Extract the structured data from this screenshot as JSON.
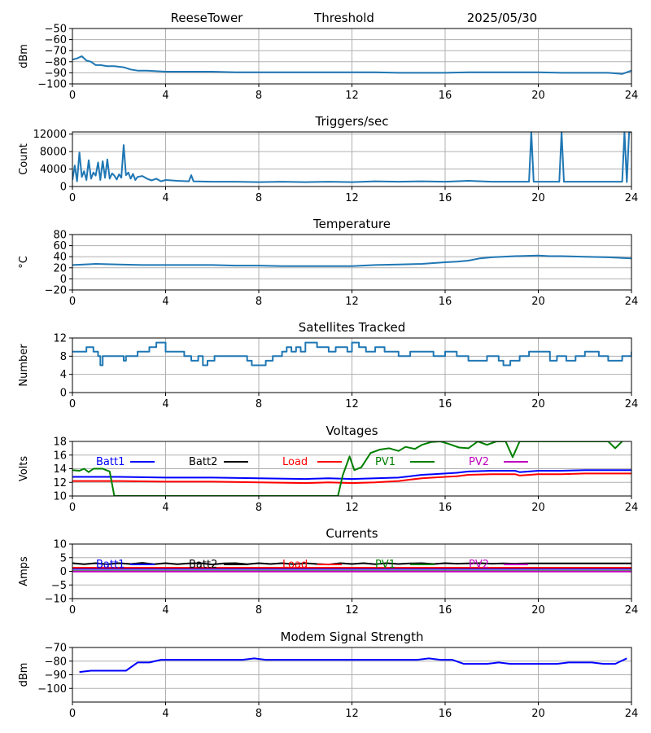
{
  "header": {
    "station": "ReeseTower",
    "mode": "Threshold",
    "date": "2025/05/30"
  },
  "chart_data": [
    {
      "type": "line",
      "title": "",
      "ylabel": "dBm",
      "xlim": [
        0,
        24
      ],
      "ylim": [
        -100,
        -50
      ],
      "xticks": [
        0,
        4,
        8,
        12,
        16,
        20,
        24
      ],
      "yticks": [
        -100,
        -90,
        -80,
        -70,
        -60,
        -50
      ],
      "grid": true,
      "series": [
        {
          "color": "#1f77b4",
          "x": [
            0,
            0.2,
            0.4,
            0.6,
            0.8,
            1.0,
            1.2,
            1.5,
            1.8,
            2.2,
            2.5,
            2.8,
            3.2,
            3.6,
            4,
            5,
            6,
            7,
            8,
            9,
            10,
            11,
            12,
            13,
            14,
            15,
            16,
            17,
            18,
            19,
            20,
            21,
            22,
            23,
            23.6,
            24
          ],
          "y": [
            -78,
            -77,
            -75,
            -79,
            -80,
            -83,
            -83,
            -84,
            -84,
            -85,
            -87,
            -88,
            -88,
            -88.5,
            -89,
            -89,
            -89,
            -89.5,
            -89.5,
            -89.5,
            -89.5,
            -89.5,
            -89.5,
            -89.5,
            -90,
            -90,
            -90,
            -89.5,
            -89.5,
            -89.5,
            -89.5,
            -90,
            -90,
            -90,
            -91,
            -88
          ]
        }
      ]
    },
    {
      "type": "line",
      "title": "Triggers/sec",
      "ylabel": "Count",
      "xlim": [
        0,
        24
      ],
      "ylim": [
        0,
        12500
      ],
      "xticks": [
        0,
        4,
        8,
        12,
        16,
        20,
        24
      ],
      "yticks": [
        0,
        4000,
        8000,
        12000
      ],
      "grid": true,
      "series": [
        {
          "color": "#1f77b4",
          "x": [
            0,
            0.1,
            0.2,
            0.3,
            0.4,
            0.5,
            0.6,
            0.7,
            0.8,
            0.9,
            1.0,
            1.1,
            1.2,
            1.3,
            1.4,
            1.5,
            1.6,
            1.7,
            1.8,
            1.9,
            2.0,
            2.1,
            2.2,
            2.3,
            2.4,
            2.5,
            2.6,
            2.7,
            2.8,
            3.0,
            3.2,
            3.4,
            3.6,
            3.8,
            4.0,
            4.5,
            5.0,
            5.1,
            5.2,
            6,
            7,
            8,
            9,
            10,
            11,
            12,
            13,
            14,
            15,
            16,
            17,
            18,
            19,
            19.6,
            19.7,
            19.8,
            20,
            20.9,
            21.0,
            21.1,
            22,
            23,
            23.6,
            23.7,
            23.8,
            23.9,
            24
          ],
          "y": [
            1500,
            4800,
            1200,
            7800,
            2200,
            3500,
            1500,
            6000,
            1800,
            3200,
            2500,
            5500,
            1500,
            5800,
            2000,
            6200,
            1800,
            3000,
            2500,
            1600,
            2800,
            2000,
            9500,
            2600,
            3200,
            1800,
            2900,
            1500,
            2200,
            2400,
            1800,
            1400,
            1800,
            1200,
            1500,
            1300,
            1200,
            2600,
            1200,
            1100,
            1100,
            1000,
            1100,
            1000,
            1100,
            1000,
            1200,
            1100,
            1200,
            1100,
            1300,
            1100,
            1100,
            1100,
            12500,
            1100,
            1100,
            1100,
            12500,
            1100,
            1100,
            1100,
            1100,
            12500,
            1000,
            12500,
            12500
          ]
        }
      ]
    },
    {
      "type": "line",
      "title": "Temperature",
      "ylabel": "°C",
      "xlim": [
        0,
        24
      ],
      "ylim": [
        -20,
        80
      ],
      "xticks": [
        0,
        4,
        8,
        12,
        16,
        20,
        24
      ],
      "yticks": [
        -20,
        0,
        20,
        40,
        60,
        80
      ],
      "grid": true,
      "series": [
        {
          "color": "#1f77b4",
          "x": [
            0,
            0.5,
            1,
            2,
            3,
            4,
            5,
            6,
            7,
            8,
            9,
            10,
            11,
            12,
            13,
            14,
            15,
            16,
            16.5,
            17,
            17.5,
            18,
            19,
            20,
            20.5,
            21,
            22,
            23,
            24
          ],
          "y": [
            25,
            26,
            27,
            26,
            25,
            25,
            25,
            25,
            24,
            24,
            23,
            23,
            23,
            23,
            25,
            26,
            27,
            30,
            31,
            33,
            37,
            39,
            41,
            42,
            41,
            41,
            40,
            39,
            37
          ]
        }
      ]
    },
    {
      "type": "line",
      "title": "Satellites Tracked",
      "ylabel": "Number",
      "xlim": [
        0,
        24
      ],
      "ylim": [
        0,
        12
      ],
      "xticks": [
        0,
        4,
        8,
        12,
        16,
        20,
        24
      ],
      "yticks": [
        0,
        4,
        8,
        12
      ],
      "grid": true,
      "series": [
        {
          "color": "#1f77b4",
          "step": true,
          "x": [
            0,
            0.6,
            0.9,
            1.1,
            1.2,
            1.3,
            2.0,
            2.2,
            2.3,
            2.8,
            3.3,
            3.6,
            4.0,
            4.5,
            4.8,
            5.1,
            5.4,
            5.6,
            5.8,
            6.1,
            7.0,
            7.5,
            7.7,
            8.3,
            8.6,
            9.0,
            9.2,
            9.4,
            9.6,
            9.8,
            10.0,
            10.5,
            11.0,
            11.3,
            11.8,
            12.0,
            12.3,
            12.6,
            13.0,
            13.4,
            14.0,
            14.5,
            15.0,
            15.5,
            16.0,
            16.5,
            17.0,
            17.5,
            17.8,
            18.3,
            18.5,
            18.8,
            19.2,
            19.6,
            20.2,
            20.5,
            20.8,
            21.2,
            21.6,
            22.0,
            22.6,
            23.0,
            23.6,
            24
          ],
          "y": [
            9,
            10,
            9,
            8,
            6,
            8,
            8,
            7,
            8,
            9,
            10,
            11,
            9,
            9,
            8,
            7,
            8,
            6,
            7,
            8,
            8,
            7,
            6,
            7,
            8,
            9,
            10,
            9,
            10,
            9,
            11,
            10,
            9,
            10,
            9,
            11,
            10,
            9,
            10,
            9,
            8,
            9,
            9,
            8,
            9,
            8,
            7,
            7,
            8,
            7,
            6,
            7,
            8,
            9,
            9,
            7,
            8,
            7,
            8,
            9,
            8,
            7,
            8,
            9
          ]
        }
      ]
    },
    {
      "type": "line",
      "title": "Voltages",
      "ylabel": "Volts",
      "xlim": [
        0,
        24
      ],
      "ylim": [
        10,
        18
      ],
      "xticks": [
        0,
        4,
        8,
        12,
        16,
        20,
        24
      ],
      "yticks": [
        10,
        12,
        14,
        16,
        18
      ],
      "grid": true,
      "legend": "inside-top",
      "series": [
        {
          "name": "Batt1",
          "color": "#0000ff",
          "x": [
            0,
            2,
            4,
            6,
            8,
            10,
            11,
            12,
            13,
            14,
            14.5,
            15,
            15.5,
            16,
            16.5,
            17,
            18,
            19,
            19.2,
            20,
            21,
            22,
            23,
            24
          ],
          "y": [
            12.8,
            12.8,
            12.7,
            12.7,
            12.6,
            12.5,
            12.6,
            12.5,
            12.6,
            12.7,
            12.9,
            13.1,
            13.2,
            13.3,
            13.4,
            13.6,
            13.7,
            13.7,
            13.5,
            13.7,
            13.7,
            13.8,
            13.8,
            13.8
          ]
        },
        {
          "name": "Batt2",
          "color": "#000000",
          "x": [],
          "y": []
        },
        {
          "name": "Load",
          "color": "#ff0000",
          "x": [
            0,
            2,
            4,
            6,
            8,
            10,
            11,
            12,
            13,
            14,
            14.5,
            15,
            15.5,
            16,
            16.5,
            17,
            18,
            19,
            19.2,
            20,
            21,
            22,
            23,
            24
          ],
          "y": [
            12.2,
            12.2,
            12.1,
            12.1,
            12.0,
            11.9,
            12.0,
            11.9,
            12.0,
            12.2,
            12.4,
            12.6,
            12.7,
            12.8,
            12.9,
            13.1,
            13.2,
            13.2,
            13.0,
            13.2,
            13.2,
            13.3,
            13.3,
            13.3
          ]
        },
        {
          "name": "PV1",
          "color": "#008000",
          "x": [
            0,
            0.3,
            0.5,
            0.7,
            0.9,
            1.1,
            1.3,
            1.6,
            1.8,
            2.0,
            11.4,
            11.6,
            11.9,
            12.1,
            12.4,
            12.8,
            13.2,
            13.6,
            14.0,
            14.3,
            14.7,
            15.0,
            15.4,
            15.8,
            16.2,
            16.6,
            17.0,
            17.4,
            17.8,
            18.2,
            18.6,
            18.9,
            19.2,
            19.5,
            23.0,
            23.3,
            23.6
          ],
          "y": [
            13.8,
            13.7,
            14.0,
            13.5,
            14.0,
            14.0,
            14.0,
            13.6,
            10,
            10,
            10,
            13.0,
            15.8,
            13.8,
            14.2,
            16.3,
            16.8,
            17.0,
            16.6,
            17.2,
            16.9,
            17.5,
            17.9,
            18.0,
            17.6,
            17.1,
            17.0,
            18.0,
            17.5,
            18.0,
            18.0,
            15.7,
            18.0,
            18.0,
            18.0,
            17.0,
            18.0
          ]
        },
        {
          "name": "PV2",
          "color": "#bf00bf",
          "x": [],
          "y": []
        }
      ]
    },
    {
      "type": "line",
      "title": "Currents",
      "ylabel": "Amps",
      "xlim": [
        0,
        24
      ],
      "ylim": [
        -10,
        10
      ],
      "xticks": [
        0,
        4,
        8,
        12,
        16,
        20,
        24
      ],
      "yticks": [
        -10,
        -5,
        0,
        5,
        10
      ],
      "grid": true,
      "legend": "inside-top",
      "series": [
        {
          "name": "Batt1",
          "color": "#0000ff",
          "x": [
            0,
            24
          ],
          "y": [
            0.9,
            0.9
          ]
        },
        {
          "name": "Batt2",
          "color": "#000000",
          "x": [
            0,
            0.5,
            1,
            1.5,
            2,
            2.5,
            3,
            3.5,
            4,
            4.5,
            5,
            5.5,
            6,
            6.5,
            7,
            7.5,
            8,
            8.5,
            9,
            9.5,
            10,
            10.5,
            11,
            11.5,
            12,
            12.5,
            13,
            13.5,
            14,
            14.5,
            15,
            15.5,
            16,
            16.5,
            17,
            17.5,
            18,
            18.5,
            19,
            19.5,
            20,
            21,
            22,
            23,
            24
          ],
          "y": [
            3.0,
            2.6,
            3.0,
            2.6,
            3.0,
            2.7,
            3.1,
            2.6,
            3.0,
            2.6,
            2.9,
            3.0,
            2.5,
            2.9,
            3.0,
            2.6,
            3.0,
            2.7,
            3.0,
            2.6,
            3.0,
            2.7,
            2.5,
            3.0,
            2.7,
            3.0,
            2.6,
            3.0,
            2.7,
            2.9,
            3.0,
            2.7,
            3.0,
            2.8,
            2.9,
            3.0,
            2.8,
            2.9,
            2.8,
            2.9,
            2.9,
            2.9,
            2.9,
            2.9,
            2.9
          ]
        },
        {
          "name": "Load",
          "color": "#ff0000",
          "x": [
            0,
            24
          ],
          "y": [
            1.3,
            1.3
          ]
        },
        {
          "name": "PV1",
          "color": "#008000",
          "x": [
            0,
            24
          ],
          "y": [
            0.1,
            0.1
          ]
        },
        {
          "name": "PV2",
          "color": "#bf00bf",
          "x": [
            0,
            24
          ],
          "y": [
            -0.1,
            -0.1
          ]
        }
      ]
    },
    {
      "type": "line",
      "title": "Modem Signal Strength",
      "ylabel": "dBm",
      "xlim": [
        0,
        24
      ],
      "ylim": [
        -110,
        -70
      ],
      "xticks": [
        0,
        4,
        8,
        12,
        16,
        20,
        24
      ],
      "yticks": [
        -100,
        -90,
        -80,
        -70
      ],
      "grid": true,
      "series": [
        {
          "color": "#0000ff",
          "x": [
            0.3,
            0.8,
            1.3,
            1.8,
            2.3,
            2.8,
            3.3,
            3.8,
            4.3,
            4.8,
            5.3,
            5.8,
            6.3,
            6.8,
            7.3,
            7.8,
            8.3,
            8.8,
            9.3,
            9.8,
            10.3,
            10.8,
            11.3,
            11.8,
            12.3,
            12.8,
            13.3,
            13.8,
            14.3,
            14.8,
            15.3,
            15.8,
            16.3,
            16.8,
            17.3,
            17.8,
            18.3,
            18.8,
            19.3,
            19.8,
            20.3,
            20.8,
            21.3,
            21.8,
            22.3,
            22.8,
            23.3,
            23.8
          ],
          "y": [
            -88,
            -87,
            -87,
            -87,
            -87,
            -81,
            -81,
            -79,
            -79,
            -79,
            -79,
            -79,
            -79,
            -79,
            -79,
            -78,
            -79,
            -79,
            -79,
            -79,
            -79,
            -79,
            -79,
            -79,
            -79,
            -79,
            -79,
            -79,
            -79,
            -79,
            -78,
            -79,
            -79,
            -82,
            -82,
            -82,
            -81,
            -82,
            -82,
            -82,
            -82,
            -82,
            -81,
            -81,
            -81,
            -82,
            -82,
            -78
          ]
        }
      ]
    }
  ]
}
